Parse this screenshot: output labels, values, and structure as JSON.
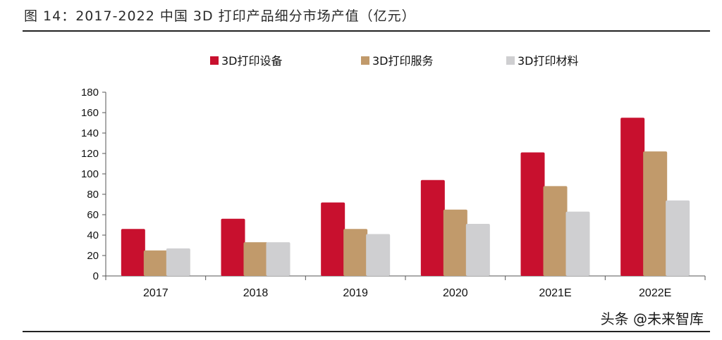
{
  "title": "图 14：2017-2022 中国 3D 打印产品细分市场产值（亿元）",
  "watermark": "头条 @未来智库",
  "chart_data": {
    "type": "bar",
    "title": "图 14：2017-2022 中国 3D 打印产品细分市场产值（亿元）",
    "categories": [
      "2017",
      "2018",
      "2019",
      "2020",
      "2021E",
      "2022E"
    ],
    "series": [
      {
        "name": "3D打印设备",
        "color": "#c8102e",
        "values": [
          46,
          56,
          72,
          94,
          121,
          155
        ]
      },
      {
        "name": "3D打印服务",
        "color": "#c19a6b",
        "values": [
          25,
          33,
          46,
          65,
          88,
          122
        ]
      },
      {
        "name": "3D打印材料",
        "color": "#cfcfd1",
        "values": [
          27,
          33,
          41,
          51,
          63,
          74
        ]
      }
    ],
    "ylim": [
      0,
      180
    ],
    "yticks": [
      0,
      20,
      40,
      60,
      80,
      100,
      120,
      140,
      160,
      180
    ],
    "legend_position": "top",
    "grid": false
  }
}
